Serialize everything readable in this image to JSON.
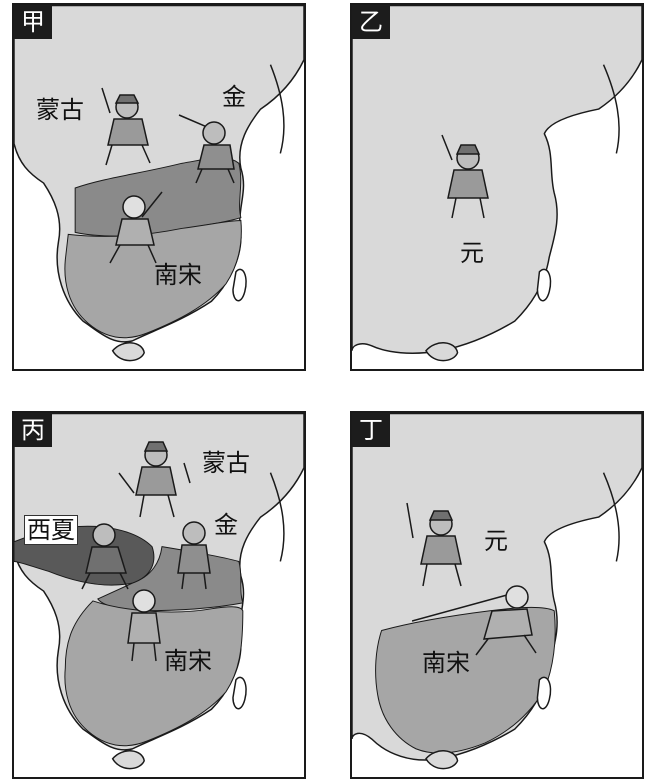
{
  "panels": [
    {
      "tag": "甲",
      "labels": [
        "蒙古",
        "金",
        "南宋"
      ]
    },
    {
      "tag": "乙",
      "labels": [
        "元"
      ]
    },
    {
      "tag": "丙",
      "labels": [
        "蒙古",
        "西夏",
        "金",
        "南宋"
      ]
    },
    {
      "tag": "丁",
      "labels": [
        "元",
        "南宋"
      ]
    }
  ],
  "colors": {
    "land": "#d9d9d9",
    "jin": "#8a8a8a",
    "song": "#a6a6a6",
    "xixia": "#595959",
    "border": "#1a1a1a"
  }
}
